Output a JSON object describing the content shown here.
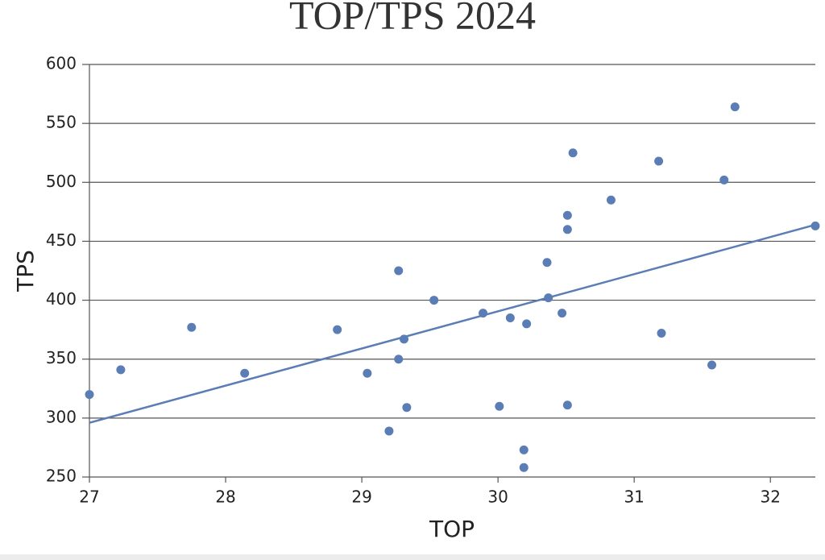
{
  "chart_data": {
    "type": "scatter",
    "title": "TOP/TPS 2024",
    "x_label": "TOP",
    "y_label": "TPS",
    "x": [
      27.0,
      27.23,
      27.75,
      28.14,
      28.82,
      29.04,
      29.2,
      29.27,
      29.27,
      29.31,
      29.33,
      29.53,
      29.89,
      30.01,
      30.09,
      30.19,
      30.19,
      30.21,
      30.36,
      30.37,
      30.47,
      30.51,
      30.51,
      30.51,
      30.55,
      30.83,
      31.18,
      31.2,
      31.57,
      31.66,
      31.74,
      32.33
    ],
    "values": [
      320,
      341,
      377,
      338,
      375,
      338,
      289,
      425,
      350,
      367,
      309,
      400,
      389,
      310,
      385,
      273,
      258,
      380,
      432,
      402,
      389,
      472,
      460,
      311,
      525,
      485,
      518,
      372,
      345,
      502,
      564,
      463
    ],
    "color": "#5b7db5",
    "trend": {
      "x": [
        27,
        32.33
      ],
      "values": [
        296,
        464
      ],
      "color": "#5b7db5"
    },
    "xlim": [
      27,
      32.33
    ],
    "xticks": [
      27,
      28,
      29,
      30,
      31,
      32
    ],
    "ylim": [
      250,
      600
    ],
    "yticks": [
      250,
      300,
      350,
      400,
      450,
      500,
      550,
      600
    ],
    "grid": true
  }
}
